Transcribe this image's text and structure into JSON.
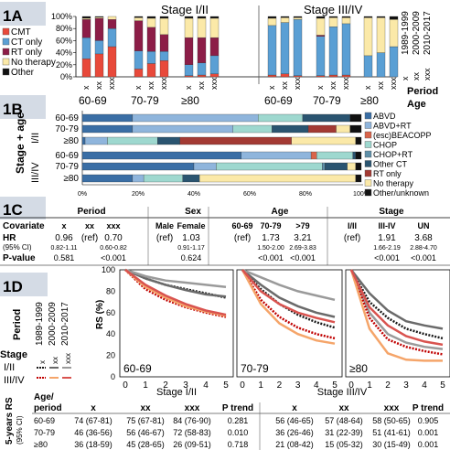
{
  "panel_1a": {
    "label": "1A",
    "legend": [
      {
        "name": "CMT",
        "color": "#e8493a"
      },
      {
        "name": "CT only",
        "color": "#5a9fd4"
      },
      {
        "name": "RT only",
        "color": "#8c1d47"
      },
      {
        "name": "No therapy",
        "color": "#fbe9a8"
      },
      {
        "name": "Other",
        "color": "#111111"
      }
    ],
    "stage_titles": [
      "Stage I/II",
      "Stage III/IV"
    ],
    "y_ticks": [
      "0%",
      "20%",
      "40%",
      "60%",
      "80%",
      "100%"
    ],
    "period_codes": [
      "x",
      "xx",
      "xxx"
    ],
    "age_groups": [
      "60-69",
      "70-79",
      "≥80",
      "60-69",
      "70-79",
      "≥80"
    ],
    "right_periods": [
      "1989-1999",
      "2000-2009",
      "2010-2017"
    ],
    "right_codes": [
      "x",
      "xx",
      "xxx"
    ],
    "label_period": "Period",
    "label_age": "Age"
  },
  "panel_1b": {
    "label": "1B",
    "ylabel": "Stage + age",
    "stage_labels": [
      "I/II",
      "III/IV"
    ],
    "rows": [
      "60-69",
      "70-79",
      "≥80",
      "60-69",
      "70-79",
      "≥80"
    ],
    "x_ticks": [
      "0%",
      "20%",
      "40%",
      "60%",
      "80%",
      "100%"
    ],
    "legend": [
      {
        "name": "ABVD",
        "color": "#3a6ea5"
      },
      {
        "name": "ABVD+RT",
        "color": "#8fb5dc"
      },
      {
        "name": "(esc)BEACOPP",
        "color": "#d9644a"
      },
      {
        "name": "CHOP",
        "color": "#9ed8cf"
      },
      {
        "name": "CHOP+RT",
        "color": "#5e8fa8"
      },
      {
        "name": "Other CT",
        "color": "#2a5470"
      },
      {
        "name": "RT only",
        "color": "#a33a33"
      },
      {
        "name": "No therapy",
        "color": "#fbe9a8"
      },
      {
        "name": "Other/unknown",
        "color": "#111111"
      }
    ]
  },
  "panel_1c": {
    "label": "1C",
    "groups": [
      "Period",
      "Sex",
      "Age",
      "Stage"
    ],
    "row_labels": [
      "Covariate",
      "HR",
      "(95% CI)",
      "P-value"
    ],
    "columns": [
      {
        "name": "x",
        "hr": "0.96",
        "ci": "0.82-1.11",
        "p": "0.581"
      },
      {
        "name": "xx",
        "hr": "(ref)",
        "ci": "",
        "p": ""
      },
      {
        "name": "xxx",
        "hr": "0.70",
        "ci": "0.60-0.82",
        "p": "<0.001"
      },
      {
        "name": "Male",
        "hr": "(ref)",
        "ci": "",
        "p": ""
      },
      {
        "name": "Female",
        "hr": "1.03",
        "ci": "0.91-1.17",
        "p": "0.624"
      },
      {
        "name": "60-69",
        "hr": "(ref)",
        "ci": "",
        "p": ""
      },
      {
        "name": "70-79",
        "hr": "1.73",
        "ci": "1.50-2.00",
        "p": "<0.001"
      },
      {
        "name": ">79",
        "hr": "3.21",
        "ci": "2.69-3.83",
        "p": "<0.001"
      },
      {
        "name": "I/II",
        "hr": "(ref)",
        "ci": "",
        "p": ""
      },
      {
        "name": "III-IV",
        "hr": "1.91",
        "ci": "1.66-2.19",
        "p": "<0.001"
      },
      {
        "name": "UN",
        "hr": "3.68",
        "ci": "2.88-4.70",
        "p": "<0.001"
      }
    ]
  },
  "panel_1d": {
    "label": "1D",
    "period_label": "Period",
    "periods": [
      "1989-1999",
      "2000-2009",
      "2010-2017"
    ],
    "period_codes": [
      "x",
      "xx",
      "xxx"
    ],
    "stage_label": "Stage",
    "stages": [
      "I/II",
      "III/IV"
    ],
    "y_label": "RS (%)",
    "y_ticks": [
      "0",
      "20",
      "40",
      "60",
      "80",
      "100"
    ],
    "x_ticks": [
      "0",
      "1",
      "2",
      "3",
      "4",
      "5"
    ],
    "age_labels": [
      "60-69",
      "70-79",
      "≥80"
    ],
    "stage_axis_left": "Stage I/II",
    "stage_axis_right": "Stage III/IV"
  },
  "table_rs": {
    "side_label_1": "5-years RS",
    "side_label_2": "(95% CI)",
    "corner_1": "Age/",
    "corner_2": "period",
    "headers": [
      "x",
      "xx",
      "xxx",
      "P trend",
      "x",
      "xx",
      "xxx",
      "P trend"
    ],
    "rows": [
      {
        "age": "60-69",
        "cells": [
          "74 (67-81)",
          "75 (67-81)",
          "84 (76-90)",
          "0.281",
          "56 (46-65)",
          "57 (48-64)",
          "58 (50-65)",
          "0.905"
        ]
      },
      {
        "age": "70-79",
        "cells": [
          "46 (36-56)",
          "56 (46-67)",
          "72 (58-83)",
          "0.010",
          "36 (26-46)",
          "31 (22-39)",
          "51 (41-61)",
          "0.001"
        ]
      },
      {
        "age": "≥80",
        "cells": [
          "36 (18-59)",
          "45 (28-65)",
          "26 (09-51)",
          "0.718",
          "21 (08-42)",
          "15 (05-32)",
          "30 (15-49)",
          "0.001"
        ]
      }
    ]
  },
  "chart_data": [
    {
      "type": "bar",
      "stacked": true,
      "panel": "1A",
      "categories": [
        "I/II 60-69 x",
        "I/II 60-69 xx",
        "I/II 60-69 xxx",
        "I/II 70-79 x",
        "I/II 70-79 xx",
        "I/II 70-79 xxx",
        "I/II ≥80 x",
        "I/II ≥80 xx",
        "I/II ≥80 xxx",
        "III/IV 60-69 x",
        "III/IV 60-69 xx",
        "III/IV 60-69 xxx",
        "III/IV 70-79 x",
        "III/IV 70-79 xx",
        "III/IV 70-79 xxx",
        "III/IV ≥80 x",
        "III/IV ≥80 xx",
        "III/IV ≥80 xxx"
      ],
      "ylim": [
        0,
        100
      ],
      "series": [
        {
          "name": "CMT",
          "values": [
            30,
            38,
            50,
            13,
            22,
            27,
            2,
            3,
            5,
            3,
            5,
            2,
            2,
            3,
            3,
            0,
            0,
            0
          ]
        },
        {
          "name": "CT only",
          "values": [
            35,
            22,
            30,
            30,
            20,
            15,
            18,
            20,
            30,
            82,
            85,
            93,
            65,
            80,
            85,
            35,
            40,
            50
          ]
        },
        {
          "name": "RT only",
          "values": [
            30,
            37,
            15,
            50,
            40,
            28,
            45,
            42,
            30,
            0,
            0,
            0,
            2,
            0,
            0,
            0,
            0,
            0
          ]
        },
        {
          "name": "No therapy",
          "values": [
            2,
            2,
            5,
            5,
            15,
            27,
            32,
            32,
            32,
            12,
            8,
            3,
            28,
            15,
            10,
            63,
            58,
            45
          ]
        },
        {
          "name": "Other",
          "values": [
            3,
            1,
            0,
            2,
            3,
            3,
            3,
            3,
            3,
            3,
            2,
            2,
            3,
            2,
            2,
            2,
            2,
            5
          ]
        }
      ]
    },
    {
      "type": "bar",
      "stacked": true,
      "orientation": "horizontal",
      "panel": "1B",
      "categories": [
        "I/II 60-69",
        "I/II 70-79",
        "I/II ≥80",
        "III/IV 60-69",
        "III/IV 70-79",
        "III/IV ≥80"
      ],
      "xlim": [
        0,
        100
      ],
      "series": [
        {
          "name": "ABVD",
          "values": [
            18,
            18,
            1,
            57,
            40,
            18
          ]
        },
        {
          "name": "ABVD+RT",
          "values": [
            45,
            36,
            8,
            25,
            8,
            4
          ]
        },
        {
          "name": "(esc)BEACOPP",
          "values": [
            0,
            0,
            0,
            2,
            0,
            0
          ]
        },
        {
          "name": "CHOP",
          "values": [
            16,
            14,
            18,
            13,
            38,
            14
          ]
        },
        {
          "name": "CHOP+RT",
          "values": [
            0,
            0,
            0,
            0,
            1,
            0
          ]
        },
        {
          "name": "Other CT",
          "values": [
            17,
            13,
            8,
            1,
            8,
            6
          ]
        },
        {
          "name": "RT only",
          "values": [
            0,
            10,
            40,
            0,
            0,
            0
          ]
        },
        {
          "name": "No therapy",
          "values": [
            0,
            5,
            23,
            0,
            3,
            56
          ]
        },
        {
          "name": "Other/unknown",
          "values": [
            4,
            4,
            2,
            2,
            2,
            2
          ]
        }
      ]
    },
    {
      "type": "line",
      "panel": "1D",
      "x": [
        0,
        1,
        2,
        3,
        4,
        5
      ],
      "ylim": [
        0,
        100
      ],
      "panels": [
        {
          "age": "60-69",
          "series": [
            {
              "stage": "I/II",
              "period": "x",
              "values": [
                100,
                92,
                86,
                82,
                78,
                74
              ]
            },
            {
              "stage": "I/II",
              "period": "xx",
              "values": [
                100,
                92,
                86,
                81,
                77,
                75
              ]
            },
            {
              "stage": "I/II",
              "period": "xxx",
              "values": [
                100,
                94,
                90,
                88,
                86,
                84
              ]
            },
            {
              "stage": "III/IV",
              "period": "x",
              "values": [
                100,
                82,
                72,
                65,
                60,
                56
              ]
            },
            {
              "stage": "III/IV",
              "period": "xx",
              "values": [
                100,
                84,
                74,
                66,
                61,
                57
              ]
            },
            {
              "stage": "III/IV",
              "period": "xxx",
              "values": [
                100,
                86,
                76,
                68,
                62,
                58
              ]
            }
          ]
        },
        {
          "age": "70-79",
          "series": [
            {
              "stage": "I/II",
              "period": "x",
              "values": [
                100,
                82,
                68,
                58,
                51,
                46
              ]
            },
            {
              "stage": "I/II",
              "period": "xx",
              "values": [
                100,
                86,
                74,
                66,
                60,
                56
              ]
            },
            {
              "stage": "I/II",
              "period": "xxx",
              "values": [
                100,
                93,
                86,
                80,
                76,
                72
              ]
            },
            {
              "stage": "III/IV",
              "period": "x",
              "values": [
                100,
                72,
                56,
                46,
                40,
                36
              ]
            },
            {
              "stage": "III/IV",
              "period": "xx",
              "values": [
                100,
                68,
                50,
                40,
                34,
                31
              ]
            },
            {
              "stage": "III/IV",
              "period": "xxx",
              "values": [
                100,
                80,
                68,
                60,
                55,
                51
              ]
            }
          ]
        },
        {
          "age": "≥80",
          "series": [
            {
              "stage": "I/II",
              "period": "x",
              "values": [
                100,
                70,
                55,
                45,
                40,
                36
              ]
            },
            {
              "stage": "I/II",
              "period": "xx",
              "values": [
                100,
                78,
                62,
                52,
                48,
                45
              ]
            },
            {
              "stage": "I/II",
              "period": "xxx",
              "values": [
                100,
                60,
                40,
                32,
                28,
                26
              ]
            },
            {
              "stage": "III/IV",
              "period": "x",
              "values": [
                100,
                55,
                35,
                28,
                24,
                21
              ]
            },
            {
              "stage": "III/IV",
              "period": "xx",
              "values": [
                100,
                45,
                22,
                16,
                15,
                15
              ]
            },
            {
              "stage": "III/IV",
              "period": "xxx",
              "values": [
                100,
                65,
                48,
                38,
                33,
                30
              ]
            }
          ]
        }
      ]
    }
  ]
}
